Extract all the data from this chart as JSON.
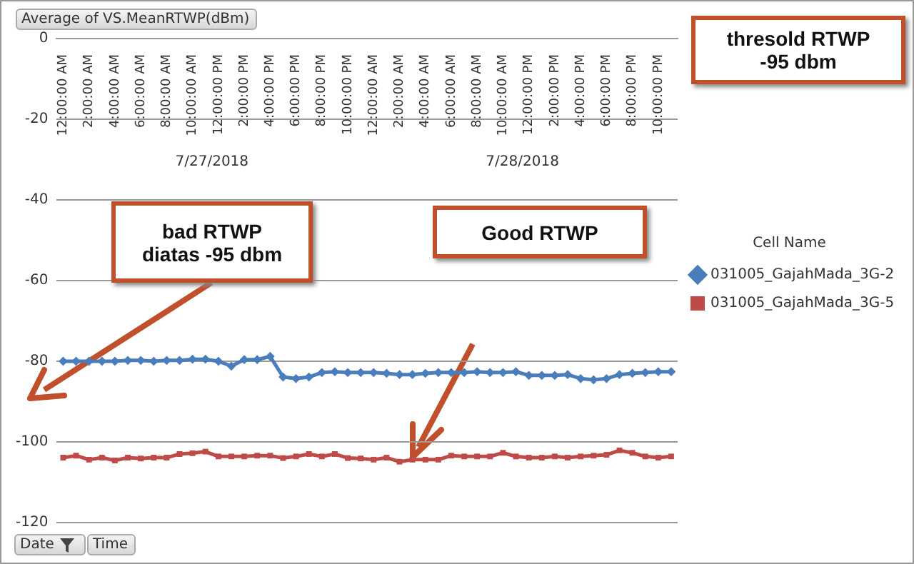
{
  "chart_data": {
    "type": "line",
    "ylabel": "Average of VS.MeanRTWP(dBm)",
    "legend_title": "Cell Name",
    "categories": [
      "12:00:00 AM",
      null,
      "2:00:00 AM",
      null,
      "4:00:00 AM",
      null,
      "6:00:00 AM",
      null,
      "8:00:00 AM",
      null,
      "10:00:00 AM",
      null,
      "12:00:00 PM",
      null,
      "2:00:00 PM",
      null,
      "4:00:00 PM",
      null,
      "6:00:00 PM",
      null,
      "8:00:00 PM",
      null,
      "10:00:00 PM",
      null,
      "12:00:00 AM",
      null,
      "2:00:00 AM",
      null,
      "4:00:00 AM",
      null,
      "6:00:00 AM",
      null,
      "8:00:00 AM",
      null,
      "10:00:00 AM",
      null,
      "12:00:00 PM",
      null,
      "2:00:00 PM",
      null,
      "4:00:00 PM",
      null,
      "6:00:00 PM",
      null,
      "8:00:00 PM",
      null,
      "10:00:00 PM",
      null
    ],
    "series": [
      {
        "name": "031005_GajahMada_3G-2",
        "color": "#4a7ebb",
        "marker": "diamond",
        "values": [
          -80,
          -80,
          -80,
          -80,
          -80,
          -79.8,
          -79.8,
          -80,
          -79.8,
          -79.8,
          -79.5,
          -79.5,
          -80,
          -81.2,
          -79.6,
          -79.6,
          -78.8,
          -83.9,
          -84.3,
          -83.9,
          -82.8,
          -82.6,
          -82.8,
          -82.8,
          -82.8,
          -83,
          -83.3,
          -83.3,
          -83,
          -82.8,
          -82.8,
          -82.8,
          -82.6,
          -82.8,
          -82.8,
          -82.6,
          -83.5,
          -83.5,
          -83.5,
          -83.3,
          -84.3,
          -84.6,
          -84.3,
          -83.3,
          -83,
          -82.8,
          -82.6,
          -82.6
        ]
      },
      {
        "name": "031005_GajahMada_3G-5",
        "color": "#be4b48",
        "marker": "square",
        "values": [
          -103.9,
          -103.4,
          -104.4,
          -103.9,
          -104.6,
          -103.9,
          -104.1,
          -103.9,
          -103.9,
          -103,
          -102.8,
          -102.4,
          -103.6,
          -103.6,
          -103.6,
          -103.4,
          -103.4,
          -104,
          -103.6,
          -103,
          -103.6,
          -103,
          -104,
          -104.1,
          -104.4,
          -103.9,
          -104.9,
          -104.4,
          -104.4,
          -104.4,
          -103.4,
          -103.6,
          -103.6,
          -103.6,
          -102.7,
          -103.6,
          -103.9,
          -103.9,
          -103.6,
          -103.9,
          -103.6,
          -103.4,
          -103.2,
          -102.1,
          -102.7,
          -103.6,
          -103.9,
          -103.6
        ]
      }
    ],
    "ylim": [
      -120,
      0
    ],
    "yticks": [
      0,
      -20,
      -40,
      -60,
      -80,
      -100,
      -120
    ],
    "grid": "y",
    "legend": "right",
    "annotations": [
      "7/27/2018",
      "7/28/2018",
      "bad RTWP\ndiatas -95 dbm",
      "Good RTWP",
      "thresold RTWP\n-95 dbm",
      "Date",
      "Time"
    ]
  }
}
